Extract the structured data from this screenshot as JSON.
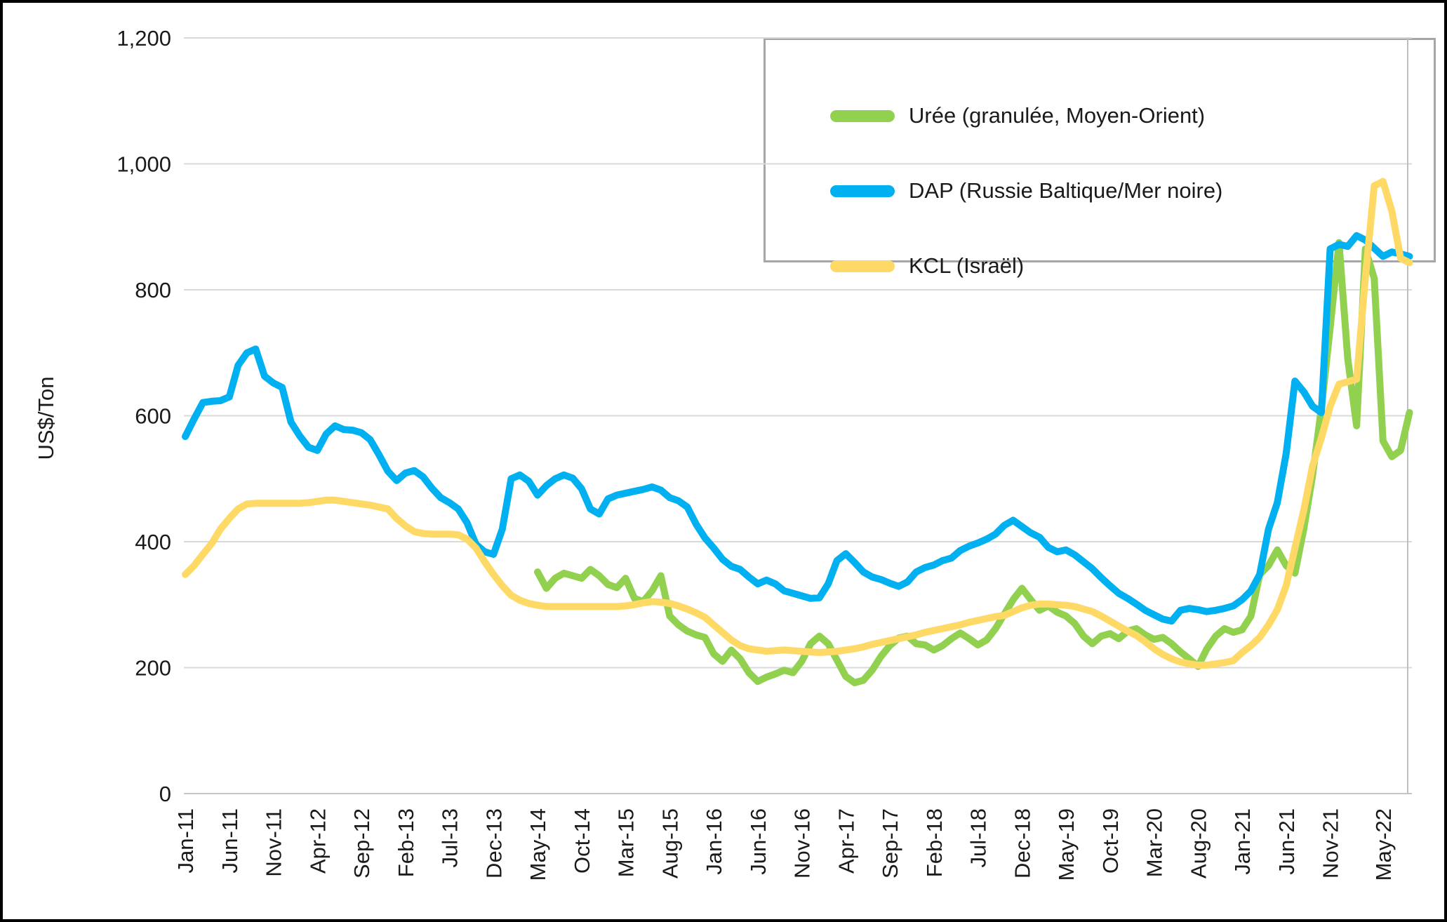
{
  "chart_data": {
    "type": "line",
    "title": "",
    "xlabel": "",
    "ylabel": "US$/Ton",
    "ylim": [
      0,
      1200
    ],
    "grid": true,
    "legend_position": "top-right",
    "x_unit": "month",
    "x_range": [
      "Jan-11",
      "Aug-22"
    ],
    "x_tick_rotation": -90,
    "y_ticks": [
      0,
      200,
      400,
      600,
      800,
      1000,
      1200
    ],
    "y_tick_labels": [
      "0",
      "200",
      "400",
      "600",
      "800",
      "1,000",
      "1,200"
    ],
    "x_tick_labels": [
      "Jan-11",
      "Jun-11",
      "Nov-11",
      "Apr-12",
      "Sep-12",
      "Feb-13",
      "Jul-13",
      "Dec-13",
      "May-14",
      "Oct-14",
      "Mar-15",
      "Aug-15",
      "Jan-16",
      "Jun-16",
      "Nov-16",
      "Apr-17",
      "Sep-17",
      "Feb-18",
      "Jul-18",
      "Dec-18",
      "May-19",
      "Oct-19",
      "Mar-20",
      "Aug-20",
      "Jan-21",
      "Jun-21",
      "Nov-21",
      "May-22"
    ],
    "x_tick_month_indices": [
      0,
      5,
      10,
      15,
      20,
      25,
      30,
      35,
      40,
      45,
      50,
      55,
      60,
      65,
      70,
      75,
      80,
      85,
      90,
      95,
      100,
      105,
      110,
      115,
      120,
      125,
      130,
      136
    ],
    "series": [
      {
        "name": "Urée (granulée, Moyen-Orient)",
        "color": "#92D050",
        "stroke_width": 10,
        "start_month_index": 40,
        "first_point": "May-14",
        "values": [
          352,
          326,
          342,
          350,
          346,
          342,
          356,
          346,
          332,
          327,
          342,
          310,
          305,
          322,
          346,
          282,
          268,
          258,
          252,
          248,
          222,
          210,
          228,
          214,
          192,
          178,
          185,
          190,
          196,
          192,
          210,
          238,
          250,
          238,
          212,
          186,
          176,
          180,
          196,
          218,
          235,
          247,
          250,
          238,
          236,
          228,
          235,
          246,
          255,
          246,
          236,
          244,
          262,
          285,
          308,
          326,
          308,
          291,
          298,
          288,
          282,
          270,
          250,
          238,
          250,
          254,
          246,
          258,
          262,
          252,
          245,
          248,
          238,
          225,
          214,
          202,
          230,
          250,
          262,
          256,
          260,
          282,
          348,
          362,
          387,
          362,
          350,
          420,
          505,
          612,
          740,
          875,
          690,
          584,
          865,
          818,
          560,
          535,
          545,
          605
        ]
      },
      {
        "name": "DAP (Russie Baltique/Mer noire)",
        "color": "#00B0F0",
        "stroke_width": 10,
        "start_month_index": 0,
        "first_point": "Jan-11",
        "values": [
          567,
          595,
          621,
          623,
          624,
          630,
          680,
          700,
          706,
          663,
          652,
          645,
          590,
          568,
          550,
          545,
          571,
          584,
          578,
          577,
          573,
          562,
          538,
          512,
          497,
          509,
          513,
          503,
          485,
          470,
          462,
          452,
          430,
          396,
          384,
          380,
          420,
          500,
          506,
          496,
          474,
          489,
          500,
          506,
          501,
          484,
          452,
          444,
          468,
          474,
          477,
          480,
          483,
          487,
          482,
          470,
          465,
          455,
          428,
          406,
          390,
          372,
          361,
          356,
          344,
          333,
          339,
          333,
          322,
          318,
          314,
          310,
          311,
          333,
          370,
          381,
          367,
          352,
          344,
          340,
          334,
          329,
          336,
          352,
          359,
          363,
          370,
          374,
          386,
          393,
          398,
          404,
          412,
          426,
          434,
          424,
          414,
          407,
          391,
          384,
          387,
          379,
          368,
          357,
          343,
          330,
          318,
          310,
          301,
          291,
          284,
          277,
          274,
          291,
          294,
          292,
          289,
          291,
          294,
          298,
          308,
          322,
          348,
          420,
          462,
          540,
          655,
          638,
          615,
          605,
          865,
          872,
          869,
          886,
          879,
          866,
          853,
          860,
          857,
          853
        ]
      },
      {
        "name": "KCL (Israël)",
        "color": "#FFD966",
        "stroke_width": 10,
        "start_month_index": 0,
        "first_point": "Jan-11",
        "values": [
          348,
          362,
          380,
          397,
          420,
          437,
          452,
          460,
          461,
          461,
          461,
          461,
          461,
          461,
          462,
          464,
          466,
          466,
          464,
          462,
          460,
          458,
          455,
          452,
          437,
          425,
          416,
          413,
          412,
          412,
          412,
          411,
          404,
          390,
          368,
          348,
          330,
          315,
          307,
          302,
          299,
          297,
          297,
          297,
          297,
          297,
          297,
          297,
          297,
          297,
          298,
          300,
          303,
          305,
          304,
          302,
          298,
          293,
          287,
          280,
          268,
          256,
          244,
          235,
          230,
          228,
          226,
          227,
          228,
          227,
          226,
          225,
          224,
          225,
          226,
          228,
          230,
          233,
          237,
          240,
          243,
          246,
          249,
          252,
          256,
          259,
          262,
          265,
          268,
          272,
          275,
          278,
          281,
          283,
          289,
          295,
          299,
          301,
          301,
          300,
          299,
          297,
          293,
          289,
          282,
          274,
          266,
          258,
          251,
          241,
          230,
          221,
          214,
          209,
          206,
          204,
          204,
          206,
          208,
          211,
          224,
          235,
          248,
          268,
          292,
          330,
          390,
          450,
          520,
          565,
          615,
          650,
          654,
          658,
          820,
          965,
          972,
          925,
          850,
          843
        ]
      }
    ]
  },
  "colors": {
    "background": "#FFFFFF",
    "frame": "#000000",
    "gridline": "#D9D9D9",
    "zero_line": "#C6C6C6",
    "plot_right_border": "#BFBFBF",
    "legend_border": "#A6A6A6",
    "text": "#1A1A1A"
  }
}
